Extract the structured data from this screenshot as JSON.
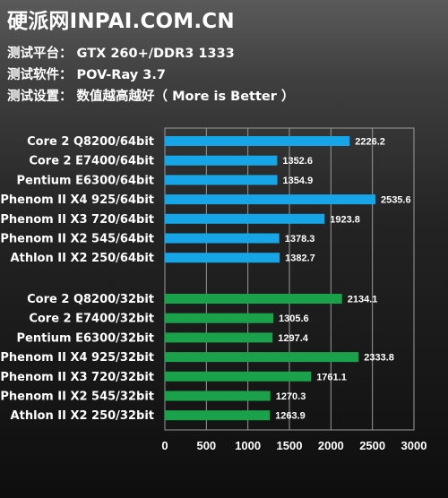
{
  "header": {
    "site": "硬派网INPAI.COM.CN",
    "lines": [
      "测试平台：  GTX 260+/DDR3 1333",
      "测试软件：  POV-Ray 3.7",
      "测试设置：  数值越高越好（ More is Better ）"
    ]
  },
  "colors": {
    "series_64bit": "#16a6e7",
    "series_32bit": "#1aa24a",
    "grid": "#9a9a9a"
  },
  "chart_data": {
    "type": "bar",
    "orientation": "horizontal",
    "xlim": [
      0,
      3000
    ],
    "ticks": [
      0,
      500,
      1000,
      1500,
      2000,
      2500,
      3000
    ],
    "grid": true,
    "groups": [
      {
        "color": "#16a6e7",
        "categories": [
          "Core 2 Q8200/64bit",
          "Core 2 E7400/64bit",
          "Pentium E6300/64bit",
          "Phenom II X4 925/64bit",
          "Phenom II X3 720/64bit",
          "Phenom II X2 545/64bit",
          "Athlon II X2 250/64bit"
        ],
        "values": [
          2226.2,
          1352.6,
          1354.9,
          2535.6,
          1923.8,
          1378.3,
          1382.7
        ]
      },
      {
        "color": "#1aa24a",
        "categories": [
          "Core 2 Q8200/32bit",
          "Core 2 E7400/32bit",
          "Pentium E6300/32bit",
          "Phenom II X4 925/32bit",
          "Phenom II X3 720/32bit",
          "Phenom II X2 545/32bit",
          "Athlon II X2 250/32bit"
        ],
        "values": [
          2134.1,
          1305.6,
          1297.4,
          2333.8,
          1761.1,
          1270.3,
          1263.9
        ]
      }
    ]
  }
}
